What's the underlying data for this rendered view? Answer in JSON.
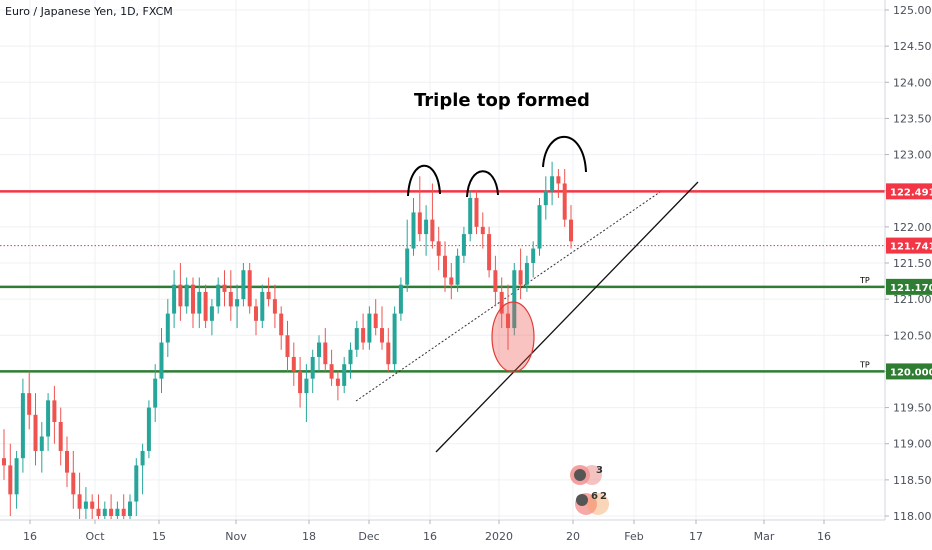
{
  "header": {
    "title": "Euro / Japanese Yen, 1D, FXCM"
  },
  "annotation": {
    "text": "Triple top formed"
  },
  "colors": {
    "up": "#26a69a",
    "down": "#ef5350",
    "resistance": "#f23645",
    "support": "#2e7d32",
    "grid": "#eef0f3",
    "axis_text": "#4a4f5a"
  },
  "chart_data": {
    "type": "candlestick",
    "title": "Euro / Japanese Yen, 1D, FXCM",
    "y_ticks": [
      "125.000",
      "124.500",
      "124.000",
      "123.500",
      "123.000",
      "122.500",
      "122.000",
      "121.500",
      "121.000",
      "120.500",
      "120.000",
      "119.500",
      "119.000",
      "118.500",
      "118.000"
    ],
    "x_ticks": [
      "16",
      "Oct",
      "15",
      "Nov",
      "18",
      "Dec",
      "16",
      "2020",
      "20",
      "Feb",
      "17",
      "Mar",
      "16"
    ],
    "ylim": [
      117.95,
      125.15
    ],
    "horizontal_levels": [
      {
        "name": "resistance",
        "value": 122.491,
        "label": "122.491",
        "color": "#f23645",
        "width": 2.5
      },
      {
        "name": "last-price",
        "value": 121.741,
        "label": "121.741",
        "color": "#f23645",
        "dotted": true
      },
      {
        "name": "tp-1",
        "value": 121.17,
        "label": "121.170",
        "tag": "TP",
        "color": "#2e7d32",
        "width": 2.5
      },
      {
        "name": "tp-2",
        "value": 120.0,
        "label": "120.000",
        "tag": "TP",
        "color": "#2e7d32",
        "width": 2.5
      }
    ],
    "candles": [
      [
        118.8,
        119.2,
        118.5,
        118.7
      ],
      [
        118.7,
        119.0,
        118.0,
        118.3
      ],
      [
        118.3,
        118.9,
        118.1,
        118.8
      ],
      [
        118.8,
        119.9,
        118.6,
        119.7
      ],
      [
        119.7,
        120.0,
        119.2,
        119.4
      ],
      [
        119.4,
        119.7,
        118.7,
        118.9
      ],
      [
        118.9,
        119.3,
        118.6,
        119.1
      ],
      [
        119.1,
        119.7,
        118.9,
        119.6
      ],
      [
        119.6,
        119.8,
        119.0,
        119.3
      ],
      [
        119.3,
        119.5,
        118.7,
        118.9
      ],
      [
        118.9,
        119.1,
        118.4,
        118.6
      ],
      [
        118.6,
        118.9,
        118.1,
        118.3
      ],
      [
        118.3,
        118.6,
        117.95,
        118.1
      ],
      [
        118.1,
        118.4,
        117.95,
        118.2
      ],
      [
        118.2,
        118.3,
        117.95,
        118.1
      ],
      [
        118.1,
        118.3,
        117.95,
        118.0
      ],
      [
        118.0,
        118.2,
        117.95,
        118.1
      ],
      [
        118.1,
        118.3,
        117.95,
        118.0
      ],
      [
        118.0,
        118.2,
        117.95,
        118.1
      ],
      [
        118.1,
        118.3,
        117.95,
        118.0
      ],
      [
        118.0,
        118.3,
        117.95,
        118.2
      ],
      [
        118.2,
        118.8,
        118.0,
        118.7
      ],
      [
        118.7,
        119.0,
        118.3,
        118.9
      ],
      [
        118.9,
        119.6,
        118.8,
        119.5
      ],
      [
        119.5,
        120.1,
        119.3,
        119.9
      ],
      [
        119.9,
        120.6,
        119.7,
        120.4
      ],
      [
        120.4,
        121.0,
        120.2,
        120.8
      ],
      [
        120.8,
        121.4,
        120.6,
        121.2
      ],
      [
        121.2,
        121.5,
        120.7,
        120.9
      ],
      [
        120.9,
        121.3,
        120.8,
        121.2
      ],
      [
        121.2,
        121.3,
        120.6,
        120.8
      ],
      [
        120.8,
        121.3,
        120.6,
        121.1
      ],
      [
        121.1,
        121.2,
        120.6,
        120.7
      ],
      [
        120.7,
        121.0,
        120.5,
        120.9
      ],
      [
        120.9,
        121.3,
        120.8,
        121.2
      ],
      [
        121.2,
        121.4,
        120.9,
        121.1
      ],
      [
        121.1,
        121.4,
        120.7,
        120.9
      ],
      [
        120.9,
        121.2,
        120.6,
        121.0
      ],
      [
        121.0,
        121.5,
        120.9,
        121.4
      ],
      [
        121.4,
        121.5,
        120.8,
        120.9
      ],
      [
        120.9,
        121.0,
        120.5,
        120.7
      ],
      [
        120.7,
        121.2,
        120.6,
        121.1
      ],
      [
        121.1,
        121.3,
        120.9,
        121.0
      ],
      [
        121.0,
        121.2,
        120.6,
        120.8
      ],
      [
        120.8,
        120.9,
        120.3,
        120.5
      ],
      [
        120.5,
        120.7,
        120.0,
        120.2
      ],
      [
        120.2,
        120.4,
        119.8,
        120.0
      ],
      [
        120.0,
        120.2,
        119.5,
        119.7
      ],
      [
        119.7,
        120.1,
        119.3,
        119.9
      ],
      [
        119.9,
        120.3,
        119.7,
        120.2
      ],
      [
        120.2,
        120.5,
        120.0,
        120.4
      ],
      [
        120.4,
        120.6,
        120.0,
        120.1
      ],
      [
        120.1,
        120.3,
        119.8,
        119.9
      ],
      [
        119.9,
        120.0,
        119.6,
        119.8
      ],
      [
        119.8,
        120.2,
        119.7,
        120.1
      ],
      [
        120.1,
        120.4,
        119.9,
        120.3
      ],
      [
        120.3,
        120.7,
        120.2,
        120.6
      ],
      [
        120.6,
        120.8,
        120.3,
        120.4
      ],
      [
        120.4,
        120.9,
        120.3,
        120.8
      ],
      [
        120.8,
        121.0,
        120.5,
        120.6
      ],
      [
        120.6,
        120.9,
        120.3,
        120.4
      ],
      [
        120.4,
        120.6,
        120.0,
        120.1
      ],
      [
        120.1,
        120.9,
        120.0,
        120.8
      ],
      [
        120.8,
        121.3,
        120.7,
        121.2
      ],
      [
        121.2,
        122.1,
        121.1,
        121.7
      ],
      [
        121.7,
        122.4,
        121.6,
        122.2
      ],
      [
        122.2,
        122.7,
        121.8,
        121.9
      ],
      [
        121.9,
        122.3,
        121.6,
        122.1
      ],
      [
        122.1,
        122.6,
        121.7,
        121.8
      ],
      [
        121.8,
        122.0,
        121.4,
        121.6
      ],
      [
        121.6,
        121.8,
        121.1,
        121.3
      ],
      [
        121.3,
        121.5,
        121.0,
        121.2
      ],
      [
        121.2,
        121.7,
        121.1,
        121.6
      ],
      [
        121.6,
        122.0,
        121.5,
        121.9
      ],
      [
        121.9,
        122.5,
        121.8,
        122.4
      ],
      [
        122.4,
        122.5,
        121.9,
        122.0
      ],
      [
        122.0,
        122.2,
        121.7,
        121.9
      ],
      [
        121.9,
        122.0,
        121.3,
        121.4
      ],
      [
        121.4,
        121.6,
        120.9,
        121.1
      ],
      [
        121.1,
        121.3,
        120.6,
        120.8
      ],
      [
        120.8,
        121.2,
        120.3,
        120.6
      ],
      [
        120.6,
        121.5,
        120.5,
        121.4
      ],
      [
        121.4,
        121.7,
        121.0,
        121.2
      ],
      [
        121.2,
        121.6,
        121.1,
        121.5
      ],
      [
        121.5,
        121.8,
        121.3,
        121.7
      ],
      [
        121.7,
        122.4,
        121.6,
        122.3
      ],
      [
        122.3,
        122.7,
        122.1,
        122.5
      ],
      [
        122.5,
        122.9,
        122.3,
        122.7
      ],
      [
        122.7,
        122.8,
        122.4,
        122.6
      ],
      [
        122.6,
        122.8,
        122.0,
        122.1
      ],
      [
        122.1,
        122.3,
        121.7,
        121.8
      ]
    ]
  }
}
